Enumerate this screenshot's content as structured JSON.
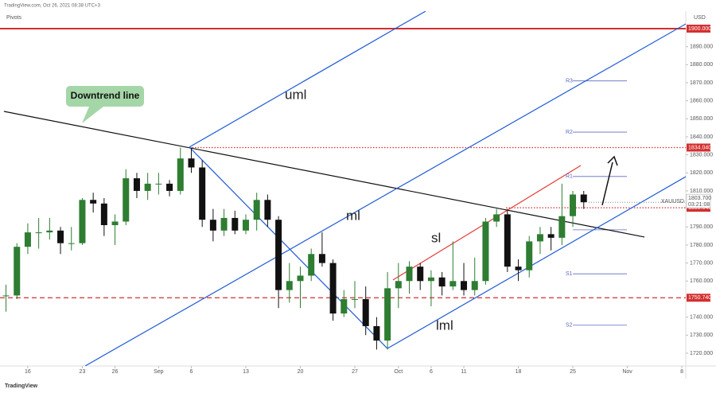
{
  "header": "TradingView.com, Oct 26, 2021 08:38 UTC+3",
  "footer": "TradingView",
  "chart_data": {
    "type": "candlestick",
    "indicator": "Pivots",
    "currency": "USD",
    "symbol": "XAUUSD",
    "up_color": "#2e7d32",
    "down_color": "#111111",
    "xlim": [
      -2.55,
      60.36
    ],
    "xticks": [
      {
        "value": 0,
        "label": "16"
      },
      {
        "value": 5,
        "label": "23"
      },
      {
        "value": 8,
        "label": "26"
      },
      {
        "value": 12,
        "label": "Sep"
      },
      {
        "value": 15,
        "label": "6"
      },
      {
        "value": 20,
        "label": "13"
      },
      {
        "value": 25,
        "label": "20"
      },
      {
        "value": 30,
        "label": "27"
      },
      {
        "value": 34,
        "label": "Oct"
      },
      {
        "value": 37,
        "label": "6"
      },
      {
        "value": 40,
        "label": "11"
      },
      {
        "value": 45,
        "label": "18"
      },
      {
        "value": 50,
        "label": "25"
      },
      {
        "value": 55,
        "label": "Nov"
      },
      {
        "value": 60,
        "label": "8"
      }
    ],
    "ylim": [
      1712.9,
      1909.7
    ],
    "yticks": [
      {
        "value": 1720,
        "label": "1720.000"
      },
      {
        "value": 1730,
        "label": "1730.000"
      },
      {
        "value": 1740,
        "label": "1740.000"
      },
      {
        "value": 1760,
        "label": "1760.000"
      },
      {
        "value": 1770,
        "label": "1770.000"
      },
      {
        "value": 1780,
        "label": "1780.000"
      },
      {
        "value": 1790,
        "label": "1790.000"
      },
      {
        "value": 1810,
        "label": "1810.000"
      },
      {
        "value": 1820,
        "label": "1820.000"
      },
      {
        "value": 1830,
        "label": "1830.000"
      },
      {
        "value": 1840,
        "label": "1840.000"
      },
      {
        "value": 1850,
        "label": "1850.000"
      },
      {
        "value": 1860,
        "label": "1860.000"
      },
      {
        "value": 1870,
        "label": "1870.000"
      },
      {
        "value": 1880,
        "label": "1880.000"
      },
      {
        "value": 1890,
        "label": "1890.000"
      }
    ],
    "candles": {
      "x": [
        -2,
        -1,
        0,
        1,
        2,
        3,
        4,
        5,
        6,
        7,
        8,
        9,
        10,
        11,
        12,
        13,
        14,
        15,
        16,
        17,
        18,
        19,
        20,
        21,
        22,
        23,
        24,
        25,
        26,
        27,
        28,
        29,
        30,
        31,
        32,
        33,
        34,
        35,
        36,
        37,
        38,
        39,
        40,
        41,
        42,
        43,
        44,
        45,
        46,
        47,
        48,
        49,
        50,
        51
      ],
      "open": [
        1752,
        1752,
        1779,
        1787,
        1787,
        1788,
        1781,
        1781,
        1805,
        1803,
        1791,
        1793,
        1817,
        1810,
        1814,
        1814,
        1810,
        1828,
        1823,
        1794,
        1788,
        1795,
        1788,
        1794,
        1805,
        1794,
        1755,
        1760,
        1763,
        1775,
        1770,
        1742,
        1750,
        1750,
        1735,
        1727,
        1756,
        1760,
        1768,
        1760,
        1762,
        1757,
        1760,
        1755,
        1760,
        1793,
        1797,
        1768,
        1766,
        1782,
        1786,
        1784,
        1796,
        1808
      ],
      "high": [
        1758,
        1781,
        1792,
        1795,
        1795,
        1790,
        1790,
        1806,
        1809,
        1806,
        1797,
        1822,
        1820,
        1820,
        1820,
        1816,
        1834,
        1834,
        1827,
        1800,
        1800,
        1799,
        1797,
        1809,
        1808,
        1796,
        1770,
        1768,
        1778,
        1787,
        1772,
        1755,
        1760,
        1757,
        1740,
        1765,
        1770,
        1771,
        1770,
        1766,
        1765,
        1782,
        1770,
        1773,
        1795,
        1800,
        1800,
        1772,
        1785,
        1790,
        1790,
        1814,
        1810,
        1810
      ],
      "low": [
        1743,
        1750,
        1775,
        1778,
        1783,
        1775,
        1777,
        1780,
        1798,
        1785,
        1780,
        1791,
        1806,
        1805,
        1808,
        1807,
        1808,
        1820,
        1790,
        1782,
        1785,
        1786,
        1786,
        1788,
        1790,
        1745,
        1748,
        1745,
        1760,
        1768,
        1738,
        1740,
        1745,
        1730,
        1722,
        1722,
        1745,
        1753,
        1755,
        1746,
        1752,
        1755,
        1752,
        1752,
        1758,
        1790,
        1765,
        1760,
        1762,
        1775,
        1777,
        1780,
        1790,
        1800
      ],
      "close": [
        1752,
        1779,
        1787,
        1787,
        1788,
        1781,
        1781,
        1805,
        1803,
        1791,
        1793,
        1817,
        1810,
        1814,
        1814,
        1810,
        1828,
        1823,
        1794,
        1788,
        1795,
        1788,
        1794,
        1805,
        1794,
        1755,
        1760,
        1763,
        1775,
        1770,
        1742,
        1750,
        1750,
        1735,
        1727,
        1756,
        1760,
        1768,
        1760,
        1762,
        1757,
        1760,
        1755,
        1760,
        1793,
        1797,
        1768,
        1766,
        1782,
        1786,
        1784,
        1796,
        1808,
        1803.7
      ]
    },
    "price_levels": [
      {
        "value": 1900,
        "label": "1900.000",
        "style": "solid",
        "color": "#d32f2f"
      },
      {
        "value": 1834.04,
        "label": "1834.040",
        "style": "dotted",
        "color": "#d32f2f"
      },
      {
        "value": 1800.645,
        "label": "1800.645",
        "style": "dotted",
        "color": "#d32f2f"
      },
      {
        "value": 1750.74,
        "label": "1750.740",
        "style": "dashed",
        "color": "#d32f2f"
      }
    ],
    "last_price": {
      "value": 1803.7,
      "label": "1803.700",
      "countdown": "03:21:08"
    },
    "pivots": [
      {
        "label": "R3",
        "value": 1871
      },
      {
        "label": "R2",
        "value": 1842.6
      },
      {
        "label": "R1",
        "value": 1818
      },
      {
        "label": null,
        "value": 1788.4
      },
      {
        "label": "S1",
        "value": 1764
      },
      {
        "label": "S2",
        "value": 1735.5
      }
    ],
    "pivot_color": "#5c6bc0",
    "lines": [
      {
        "label": "Downtrend line",
        "color": "#111111",
        "points": [
          [
            -2.19,
            1854.1
          ],
          [
            56.57,
            1784.4
          ]
        ]
      },
      {
        "label": "uml",
        "color": "#1e5bd6",
        "points": [
          [
            14.82,
            1834.3
          ],
          [
            36.5,
            1909.7
          ]
        ]
      },
      {
        "label": "ml",
        "color": "#1e5bd6",
        "points": [
          [
            5.26,
            1712.9
          ],
          [
            60.36,
            1902.6
          ]
        ]
      },
      {
        "label": "lml",
        "color": "#1e5bd6",
        "points": [
          [
            32.99,
            1722.6
          ],
          [
            60.36,
            1817.9
          ]
        ]
      },
      {
        "color": "#1e5bd6",
        "points": [
          [
            14.82,
            1834.3
          ],
          [
            32.99,
            1722.6
          ]
        ]
      },
      {
        "label": "sl",
        "color": "#e53935",
        "points": [
          [
            33.5,
            1760.6
          ],
          [
            50.73,
            1824.1
          ]
        ]
      }
    ]
  }
}
